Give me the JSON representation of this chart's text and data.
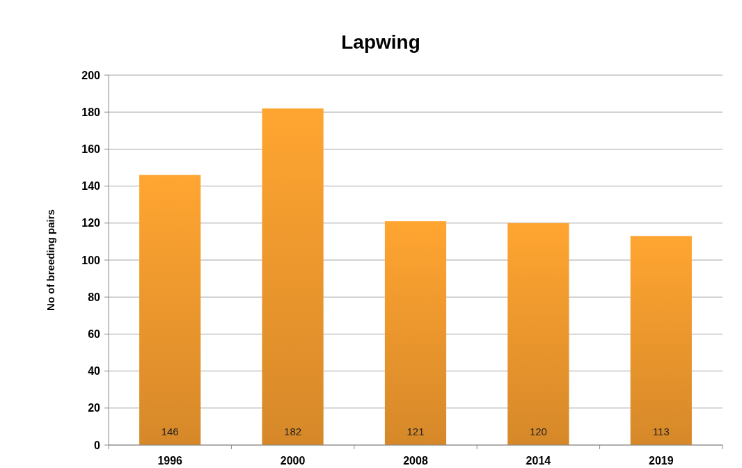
{
  "chart_data": {
    "type": "bar",
    "title": "Lapwing",
    "ylabel": "No of breeding pairs",
    "categories": [
      "1996",
      "2000",
      "2008",
      "2014",
      "2019"
    ],
    "values": [
      146,
      182,
      121,
      120,
      113
    ],
    "color": "#f29a2e",
    "ylim": [
      0,
      200
    ],
    "yticks": [
      0,
      20,
      40,
      60,
      80,
      100,
      120,
      140,
      160,
      180,
      200
    ],
    "grid": "y",
    "data_labels": true
  }
}
